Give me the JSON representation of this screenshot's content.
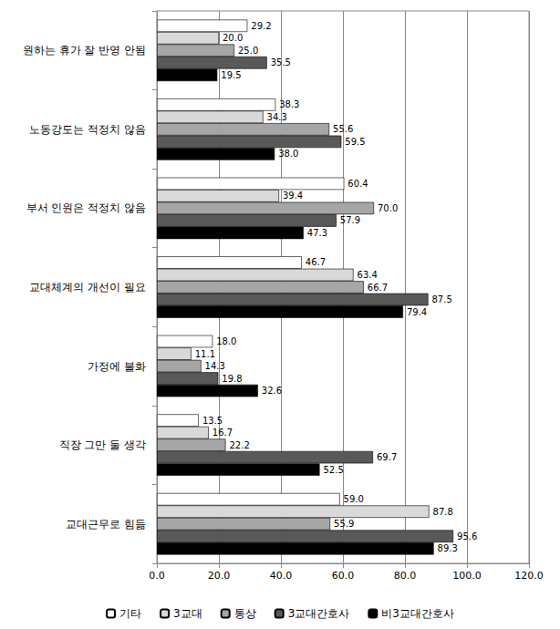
{
  "chart_data": {
    "type": "bar",
    "orientation": "horizontal",
    "categories": [
      "원하는 휴가 잘 반영 안됨",
      "노동강도는 적정치 않음",
      "부서 인원은 적정치 않음",
      "교대체계의 개선이 필요",
      "가정에 불화",
      "직장 그만 둘 생각",
      "교대근무로 힘듦"
    ],
    "series": [
      {
        "name": "기타",
        "color": "#ffffff",
        "values": [
          29.2,
          38.3,
          60.4,
          46.7,
          18.0,
          13.5,
          59.0
        ],
        "value_labels": [
          "29.2",
          "38.3",
          "60.4",
          "46.7",
          "18.0",
          "13.5",
          "59.0"
        ]
      },
      {
        "name": "3교대",
        "color": "#d9d9d9",
        "values": [
          20.0,
          34.3,
          39.4,
          63.4,
          11.1,
          16.7,
          87.8
        ],
        "value_labels": [
          "20.0",
          "34.3",
          "39.4",
          "63.4",
          "11.1",
          "16.7",
          "87.8"
        ]
      },
      {
        "name": "통상",
        "color": "#a6a6a6",
        "values": [
          25.0,
          55.6,
          70.0,
          66.7,
          14.3,
          22.2,
          55.9
        ],
        "value_labels": [
          "25.0",
          "55.6",
          "70.0",
          "66.7",
          "14.3",
          "22.2",
          "55.9"
        ]
      },
      {
        "name": "3교대간호사",
        "color": "#595959",
        "values": [
          35.5,
          59.5,
          57.9,
          87.5,
          19.8,
          69.7,
          95.6
        ],
        "value_labels": [
          "35.5",
          "59.5",
          "57.9",
          "87.5",
          "19.8",
          "69.7",
          "95.6"
        ]
      },
      {
        "name": "비3교대간호사",
        "color": "#000000",
        "values": [
          19.5,
          38.0,
          47.3,
          79.4,
          32.6,
          52.5,
          89.3
        ],
        "value_labels": [
          "19.5",
          "38.0",
          "47.3",
          "79.4",
          "32.6",
          "52.5",
          "89.3"
        ]
      }
    ],
    "xlim": [
      0,
      120
    ],
    "xticks": [
      {
        "value": 0,
        "label": "0.0"
      },
      {
        "value": 20,
        "label": "20.0"
      },
      {
        "value": 40,
        "label": "40.0"
      },
      {
        "value": 60,
        "label": "60.0"
      },
      {
        "value": 80,
        "label": "80.0"
      },
      {
        "value": 100,
        "label": "100.0"
      },
      {
        "value": 120,
        "label": "120.0"
      }
    ],
    "grid": true,
    "legend": "bottom",
    "data_labels": true
  }
}
